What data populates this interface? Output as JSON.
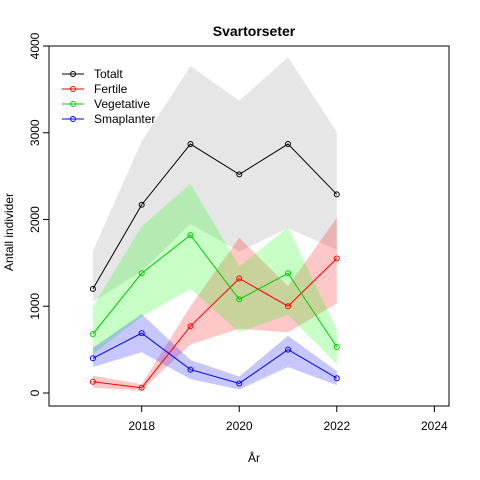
{
  "chart_data": {
    "type": "line",
    "title": "Svartorseter",
    "xlabel": "År",
    "ylabel": "Antall individer",
    "xlim": [
      2016.1,
      2024.3
    ],
    "ylim": [
      -150,
      4000
    ],
    "x_ticks": [
      2018,
      2020,
      2022,
      2024
    ],
    "y_ticks": [
      0,
      1000,
      2000,
      3000,
      4000
    ],
    "x_tick_labels": [
      "2018",
      "2020",
      "2022",
      "2024"
    ],
    "y_tick_labels": [
      "0",
      "1000",
      "2000",
      "3000",
      "4000"
    ],
    "legend_position": "top-left",
    "x": [
      2017,
      2018,
      2019,
      2020,
      2021,
      2022
    ],
    "series": [
      {
        "name": "Totalt",
        "color": "#000000",
        "band_color": "#bebebe",
        "values": [
          1200,
          2170,
          2870,
          2520,
          2870,
          2290
        ],
        "lower": [
          1050,
          1400,
          1950,
          1630,
          1900,
          1650
        ],
        "upper": [
          1640,
          2900,
          3770,
          3370,
          3870,
          3010
        ]
      },
      {
        "name": "Fertile",
        "color": "#ff0000",
        "band_color": "#ff0000",
        "values": [
          130,
          60,
          770,
          1320,
          1000,
          1550
        ],
        "lower": [
          60,
          30,
          560,
          740,
          700,
          1030
        ],
        "upper": [
          200,
          100,
          1000,
          1790,
          1230,
          2020
        ]
      },
      {
        "name": "Vegetative",
        "color": "#00cc00",
        "band_color": "#00ff00",
        "values": [
          680,
          1380,
          1820,
          1080,
          1380,
          530
        ],
        "lower": [
          450,
          880,
          1200,
          700,
          900,
          330
        ],
        "upper": [
          1000,
          1920,
          2410,
          1460,
          1910,
          730
        ]
      },
      {
        "name": "Smaplanter",
        "color": "#0000ff",
        "band_color": "#0000ff",
        "values": [
          400,
          690,
          270,
          110,
          500,
          170
        ],
        "lower": [
          300,
          470,
          160,
          40,
          300,
          90
        ],
        "upper": [
          520,
          910,
          380,
          190,
          660,
          250
        ]
      }
    ]
  }
}
